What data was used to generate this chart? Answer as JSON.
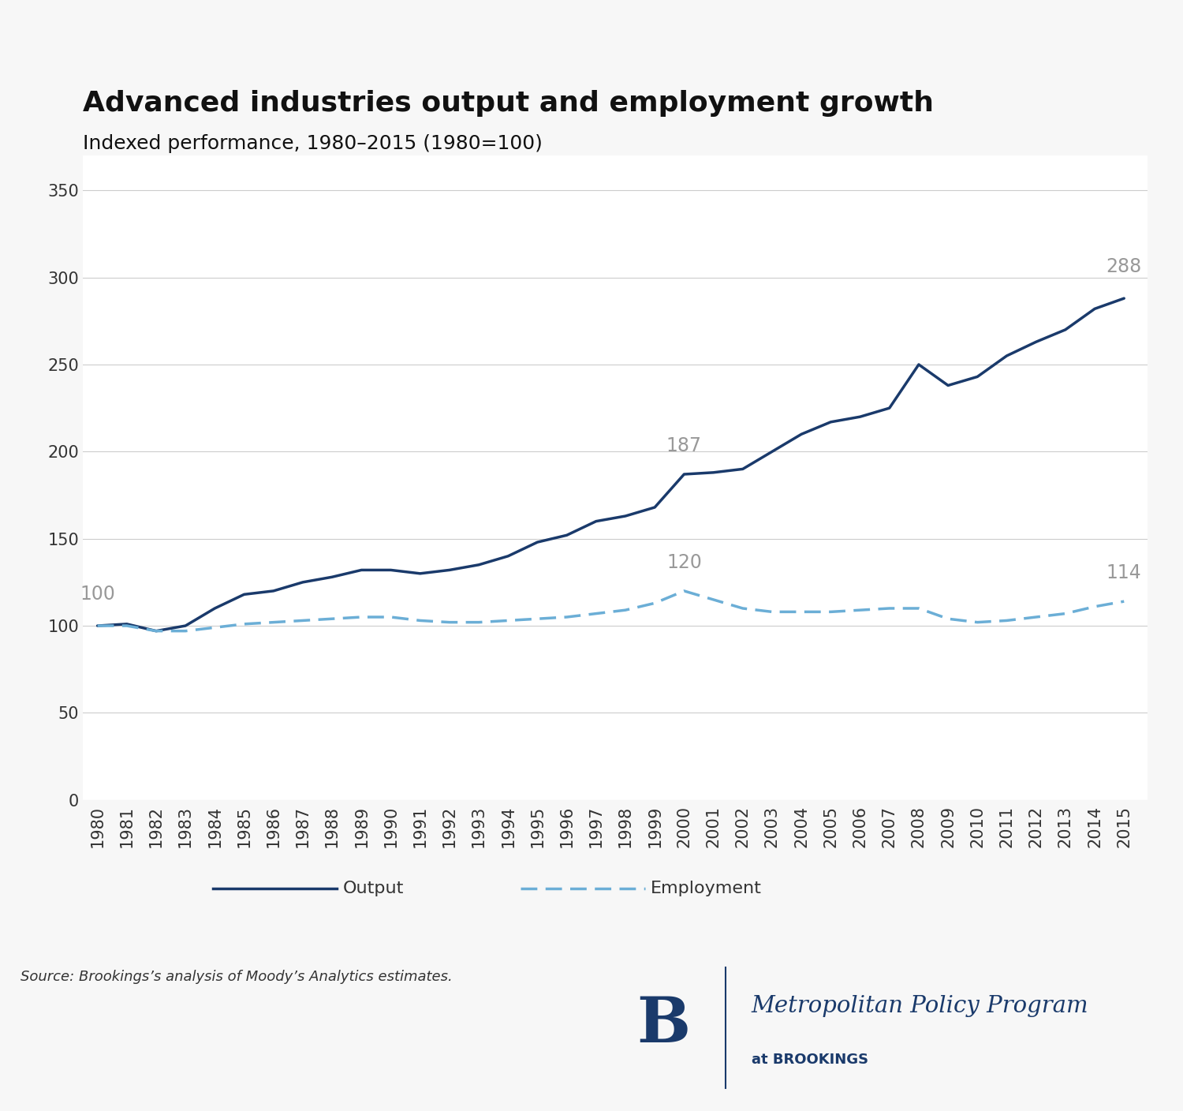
{
  "title": "Advanced industries output and employment growth",
  "subtitle": "Indexed performance, 1980–2015 (1980=100)",
  "years": [
    1980,
    1981,
    1982,
    1983,
    1984,
    1985,
    1986,
    1987,
    1988,
    1989,
    1990,
    1991,
    1992,
    1993,
    1994,
    1995,
    1996,
    1997,
    1998,
    1999,
    2000,
    2001,
    2002,
    2003,
    2004,
    2005,
    2006,
    2007,
    2008,
    2009,
    2010,
    2011,
    2012,
    2013,
    2014,
    2015
  ],
  "output": [
    100,
    101,
    97,
    100,
    110,
    118,
    120,
    125,
    128,
    132,
    132,
    130,
    132,
    135,
    140,
    148,
    152,
    160,
    163,
    168,
    187,
    188,
    190,
    200,
    210,
    217,
    220,
    225,
    250,
    238,
    243,
    255,
    263,
    270,
    282,
    288
  ],
  "employment": [
    100,
    100,
    97,
    97,
    99,
    101,
    102,
    103,
    104,
    105,
    105,
    103,
    102,
    102,
    103,
    104,
    105,
    107,
    109,
    113,
    120,
    115,
    110,
    108,
    108,
    108,
    109,
    110,
    110,
    104,
    102,
    103,
    105,
    107,
    111,
    114
  ],
  "output_color": "#1a3a6b",
  "employment_color": "#6baed6",
  "output_label": "Output",
  "employment_label": "Employment",
  "yticks": [
    0,
    50,
    100,
    150,
    200,
    250,
    300,
    350
  ],
  "ylim": [
    0,
    370
  ],
  "source_text": "Source: Brookings’s analysis of Moody’s Analytics estimates.",
  "background_color": "#f7f7f7",
  "plot_bg_color": "#ffffff",
  "grid_color": "#cccccc",
  "title_fontsize": 26,
  "subtitle_fontsize": 18,
  "tick_fontsize": 15,
  "legend_fontsize": 16,
  "annotation_fontsize": 17,
  "source_fontsize": 13,
  "brookings_color": "#1a3a6b"
}
